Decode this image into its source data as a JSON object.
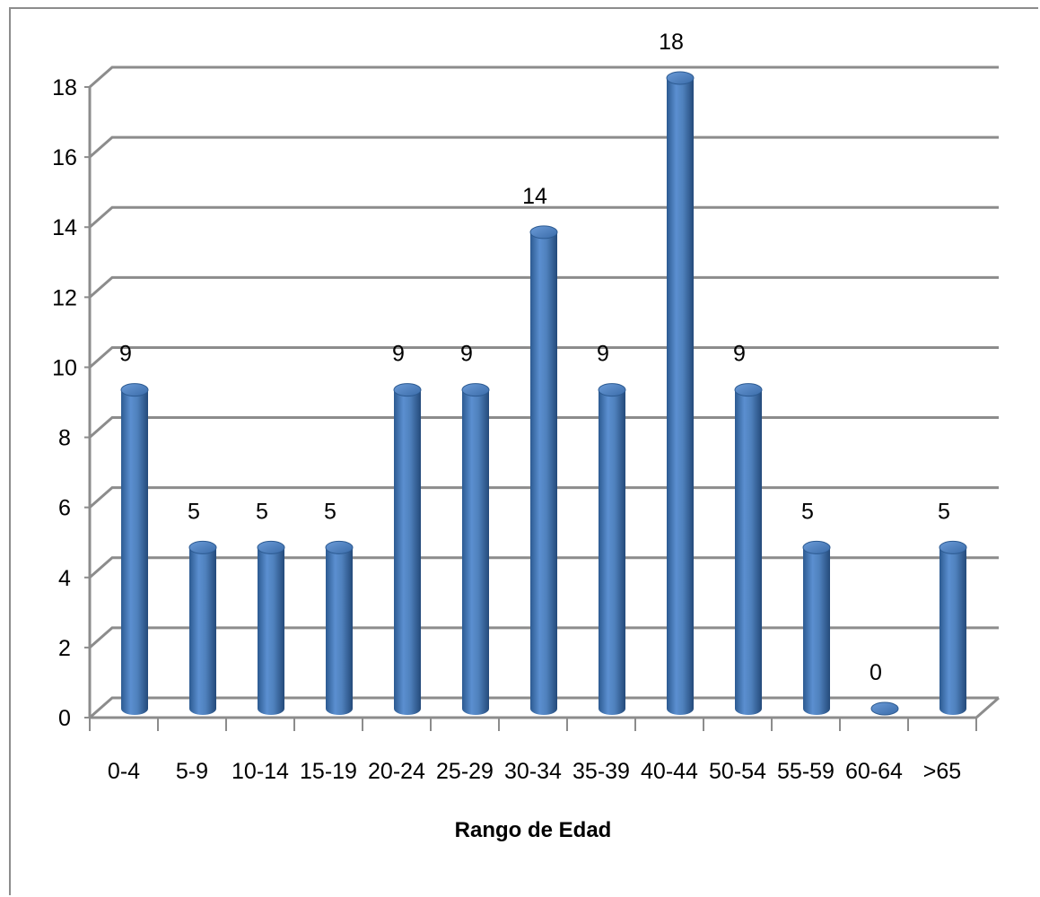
{
  "chart_data": {
    "type": "bar",
    "style": "3d-cylinder",
    "title": "",
    "xlabel": "Rango de Edad",
    "ylabel": "",
    "categories": [
      "0-4",
      "5-9",
      "10-14",
      "15-19",
      "20-24",
      "25-29",
      "30-34",
      "35-39",
      "40-44",
      "50-54",
      "55-59",
      "60-64",
      ">65"
    ],
    "values": [
      9.1,
      4.6,
      4.6,
      4.6,
      9.1,
      9.1,
      13.6,
      9.1,
      18.0,
      9.1,
      4.6,
      0,
      4.6
    ],
    "data_labels": [
      "9",
      "5",
      "5",
      "5",
      "9",
      "9",
      "14",
      "9",
      "18",
      "9",
      "5",
      "0",
      "5"
    ],
    "y_ticks": [
      "0",
      "2",
      "4",
      "6",
      "8",
      "10",
      "12",
      "14",
      "16",
      "18"
    ],
    "ylim": [
      0,
      18
    ],
    "grid": true,
    "legend": "none",
    "colors": {
      "bar": "#4f81bd",
      "bar_dark": "#2c5a91",
      "bar_light": "#7fa8dc",
      "grid": "#8c8c8c"
    }
  }
}
